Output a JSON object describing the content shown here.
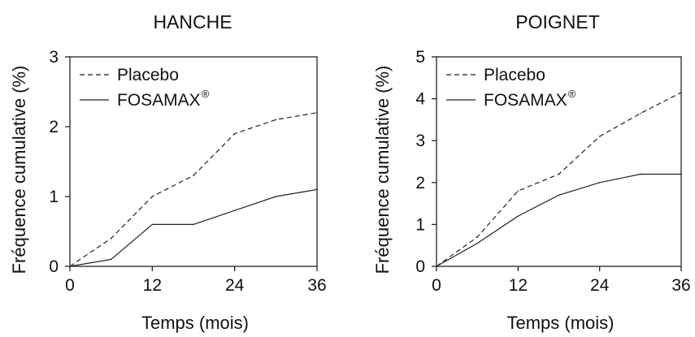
{
  "chart_data": [
    {
      "type": "line",
      "title": "HANCHE",
      "xlabel": "Temps (mois)",
      "ylabel": "Fréquence cumulative (%)",
      "xlim": [
        0,
        36
      ],
      "ylim": [
        0,
        3
      ],
      "xticks": [
        "0",
        "12",
        "24",
        "36"
      ],
      "yticks": [
        "0",
        "1",
        "2",
        "3"
      ],
      "grid": false,
      "legend_position": "top-left",
      "series": [
        {
          "name": "Placebo",
          "style": "dashed",
          "x": [
            0,
            6,
            12,
            18,
            24,
            30,
            36
          ],
          "y": [
            0,
            0.4,
            1.0,
            1.3,
            1.9,
            2.1,
            2.2
          ]
        },
        {
          "name": "FOSAMAX",
          "name_superscript": "®",
          "style": "solid",
          "x": [
            0,
            6,
            12,
            18,
            24,
            30,
            36
          ],
          "y": [
            0,
            0.1,
            0.6,
            0.6,
            0.8,
            1.0,
            1.1
          ]
        }
      ]
    },
    {
      "type": "line",
      "title": "POIGNET",
      "xlabel": "Temps (mois)",
      "ylabel": "Fréquence cumulative (%)",
      "xlim": [
        0,
        36
      ],
      "ylim": [
        0,
        5
      ],
      "xticks": [
        "0",
        "12",
        "24",
        "36"
      ],
      "yticks": [
        "0",
        "1",
        "2",
        "3",
        "4",
        "5"
      ],
      "grid": false,
      "legend_position": "top-left",
      "series": [
        {
          "name": "Placebo",
          "style": "dashed",
          "x": [
            0,
            6,
            12,
            18,
            24,
            30,
            36
          ],
          "y": [
            0,
            0.7,
            1.8,
            2.2,
            3.1,
            3.65,
            4.15
          ]
        },
        {
          "name": "FOSAMAX",
          "name_superscript": "®",
          "style": "solid",
          "x": [
            0,
            6,
            12,
            18,
            24,
            30,
            36
          ],
          "y": [
            0,
            0.55,
            1.2,
            1.7,
            2.0,
            2.2,
            2.2
          ]
        }
      ]
    }
  ],
  "colors": {
    "line": "#222222",
    "axis": "#222222",
    "text": "#111111"
  }
}
